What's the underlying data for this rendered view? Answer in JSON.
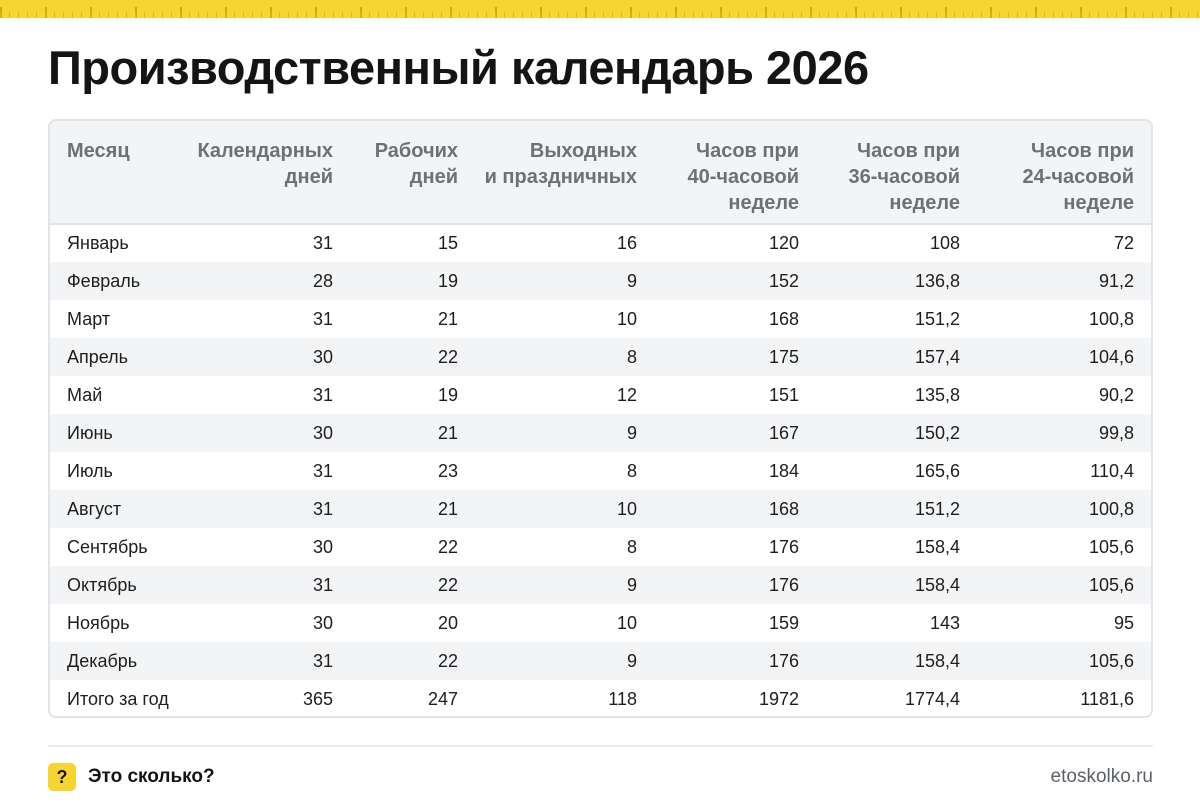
{
  "colors": {
    "accent": "#f7d531",
    "header_text": "#6d7177",
    "stripe": "#f3f4f6"
  },
  "title": "Производственный календарь 2026",
  "table": {
    "columns": [
      "Месяц",
      "Календарных\nдней",
      "Рабочих\nдней",
      "Выходных\nи праздничных",
      "Часов при\n40-часовой\nнеделе",
      "Часов при\n36-часовой\nнеделе",
      "Часов при\n24-часовой\nнеделе"
    ],
    "rows": [
      [
        "Январь",
        "31",
        "15",
        "16",
        "120",
        "108",
        "72"
      ],
      [
        "Февраль",
        "28",
        "19",
        "9",
        "152",
        "136,8",
        "91,2"
      ],
      [
        "Март",
        "31",
        "21",
        "10",
        "168",
        "151,2",
        "100,8"
      ],
      [
        "Апрель",
        "30",
        "22",
        "8",
        "175",
        "157,4",
        "104,6"
      ],
      [
        "Май",
        "31",
        "19",
        "12",
        "151",
        "135,8",
        "90,2"
      ],
      [
        "Июнь",
        "30",
        "21",
        "9",
        "167",
        "150,2",
        "99,8"
      ],
      [
        "Июль",
        "31",
        "23",
        "8",
        "184",
        "165,6",
        "110,4"
      ],
      [
        "Август",
        "31",
        "21",
        "10",
        "168",
        "151,2",
        "100,8"
      ],
      [
        "Сентябрь",
        "30",
        "22",
        "8",
        "176",
        "158,4",
        "105,6"
      ],
      [
        "Октябрь",
        "31",
        "22",
        "9",
        "176",
        "158,4",
        "105,6"
      ],
      [
        "Ноябрь",
        "30",
        "20",
        "10",
        "159",
        "143",
        "95"
      ],
      [
        "Декабрь",
        "31",
        "22",
        "9",
        "176",
        "158,4",
        "105,6"
      ],
      [
        "Итого за год",
        "365",
        "247",
        "118",
        "1972",
        "1774,4",
        "1181,6"
      ]
    ]
  },
  "footer": {
    "icon": "question-icon",
    "icon_glyph": "?",
    "brand": "Это сколько?",
    "site": "etoskolko.ru"
  }
}
